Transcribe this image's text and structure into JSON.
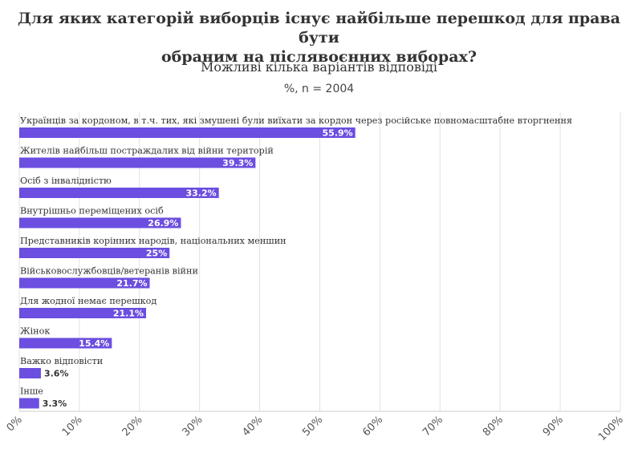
{
  "chart_data": {
    "type": "bar",
    "orientation": "horizontal",
    "title_line1": "Для яких категорій виборців існує найбільше перешкод для права бути",
    "title_line2": "обраним на післявоєнних виборах?",
    "subtitle": "Можливі кілька варіантів відповіді",
    "caption": "%, n = 2004",
    "categories": [
      "Українців за кордоном, в т.ч. тих, які змушені були виїхати за кордон через російське повномасштабне вторгнення",
      "Жителів найбільш постраждалих від війни територій",
      "Осіб з інвалідністю",
      "Внутрішньо переміщених осіб",
      "Представників корінних народів, національних меншин",
      "Військовослужбовців/ветеранів війни",
      "Для жодної немає перешкод",
      "Жінок",
      "Важко відповісти",
      "Інше"
    ],
    "values": [
      55.9,
      39.3,
      33.2,
      26.9,
      25,
      21.7,
      21.1,
      15.4,
      3.6,
      3.3
    ],
    "value_labels": [
      "55.9%",
      "39.3%",
      "33.2%",
      "26.9%",
      "25%",
      "21.7%",
      "21.1%",
      "15.4%",
      "3.6%",
      "3.3%"
    ],
    "xlim": [
      0,
      100
    ],
    "x_ticks": [
      "0%",
      "10%",
      "20%",
      "30%",
      "40%",
      "50%",
      "60%",
      "70%",
      "80%",
      "90%",
      "100%"
    ],
    "bar_color": "#6c4ee0",
    "grid_color": "#e2e2e2",
    "label_color": "#333333",
    "grid": true
  }
}
